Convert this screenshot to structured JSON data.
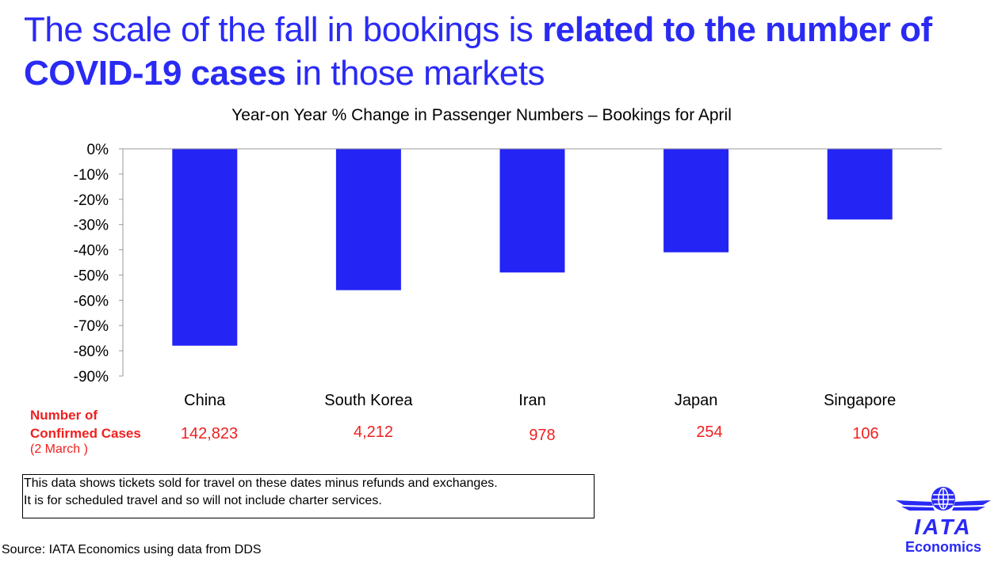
{
  "title": {
    "part1": "The scale of the fall in bookings is ",
    "part2": "related to the number of COVID-19 cases",
    "part3": " in those markets"
  },
  "chart_data": {
    "type": "bar",
    "title": "Year-on Year % Change in Passenger Numbers – Bookings for April",
    "categories": [
      "China",
      "South Korea",
      "Iran",
      "Japan",
      "Singapore"
    ],
    "values": [
      -78,
      -56,
      -49,
      -41,
      -28
    ],
    "ylim": [
      -90,
      0
    ],
    "yticks": [
      "0%",
      "-10%",
      "-20%",
      "-30%",
      "-40%",
      "-50%",
      "-60%",
      "-70%",
      "-80%",
      "-90%"
    ],
    "xlabel": "",
    "ylabel": "",
    "bar_color": "#2424f5"
  },
  "cases": {
    "label_line1": "Number of",
    "label_line2": "Confirmed Cases",
    "date": "(2 March )",
    "values": [
      "142,823",
      "4,212",
      "978",
      "254",
      "106"
    ]
  },
  "note": {
    "line1": "This data shows tickets sold for travel on these dates minus refunds and exchanges.",
    "line2": "It is for scheduled travel and so will not include charter services."
  },
  "source": "Source: IATA Economics using data from DDS",
  "logo": {
    "name": "IATA",
    "sub": "Economics"
  }
}
